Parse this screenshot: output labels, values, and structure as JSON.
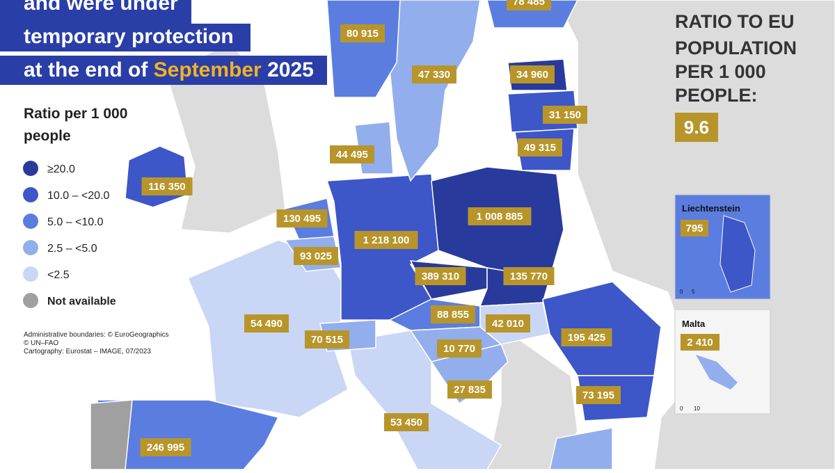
{
  "title": {
    "lines": [
      "and were under",
      "temporary protection",
      "at the end of "
    ],
    "highlight": "September",
    "year": " 2025"
  },
  "legend": {
    "title_lines": [
      "Ratio per 1 000",
      "people"
    ],
    "items": [
      "≥20.0",
      "10.0 – <20.0",
      "5.0 – <10.0",
      "2.5 – <5.0",
      "<2.5",
      "Not available"
    ]
  },
  "sources": [
    "Administrative boundaries: © EuroGeographics",
    "© UN–FAO",
    "Cartography: Eurostat – IMAGE, 07/2023"
  ],
  "eu_ratio": {
    "label_lines": [
      "RATIO TO EU",
      "POPULATION",
      "PER 1 000",
      "PEOPLE:"
    ],
    "value": "9.6"
  },
  "insets": [
    {
      "name": "Liechtenstein",
      "value": "795",
      "scale": [
        "0",
        "5"
      ]
    },
    {
      "name": "Malta",
      "value": "2 410",
      "scale": [
        "0",
        "10"
      ]
    }
  ],
  "country_labels": [
    "78 485",
    "80 915",
    "47 330",
    "34 960",
    "31 150",
    "49 315",
    "44 495",
    "116 350",
    "130 495",
    "1 008 885",
    "1 218 100",
    "93 025",
    "389 310",
    "135 770",
    "88 855",
    "42 010",
    "54 490",
    "70 515",
    "195 425",
    "10 770",
    "27 835",
    "73 195",
    "53 450",
    "246 995"
  ]
}
